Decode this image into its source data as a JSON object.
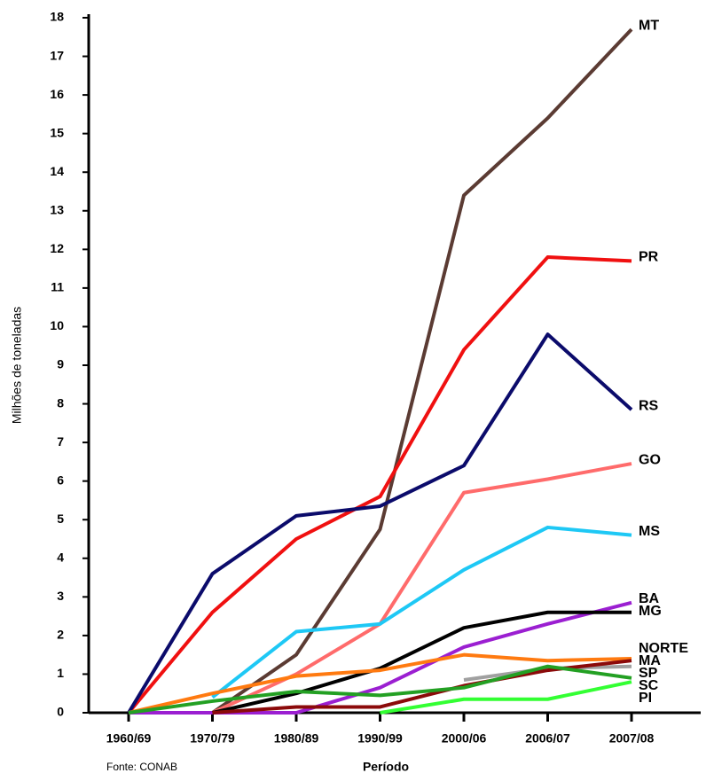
{
  "chart_data": {
    "type": "line",
    "y_label": "Milhões de toneladas",
    "x_label": "Período",
    "source": "Fonte: CONAB",
    "categories": [
      "1960/69",
      "1970/79",
      "1980/89",
      "1990/99",
      "2000/06",
      "2006/07",
      "2007/08"
    ],
    "ylim": [
      0,
      18
    ],
    "yticks": [
      0,
      1,
      2,
      3,
      4,
      5,
      6,
      7,
      8,
      9,
      10,
      11,
      12,
      13,
      14,
      15,
      16,
      17,
      18
    ],
    "series": [
      {
        "name": "MT",
        "color": "#5b3b33",
        "values": [
          null,
          0,
          1.5,
          4.75,
          13.4,
          15.4,
          17.7
        ]
      },
      {
        "name": "PR",
        "color": "#f01010",
        "values": [
          0,
          2.6,
          4.5,
          5.6,
          9.4,
          11.8,
          11.7
        ]
      },
      {
        "name": "RS",
        "color": "#0b0b6b",
        "values": [
          0,
          3.6,
          5.1,
          5.35,
          6.4,
          9.8,
          7.85
        ]
      },
      {
        "name": "GO",
        "color": "#ff6b6b",
        "values": [
          null,
          0,
          1.0,
          2.3,
          5.7,
          6.05,
          6.45
        ]
      },
      {
        "name": "MS",
        "color": "#1ec8f5",
        "values": [
          null,
          0.4,
          2.1,
          2.3,
          3.7,
          4.8,
          4.6
        ]
      },
      {
        "name": "BA",
        "color": "#9b1fd1",
        "values": [
          0,
          0,
          0,
          0.65,
          1.7,
          2.3,
          2.85
        ]
      },
      {
        "name": "MG",
        "color": "#000000",
        "values": [
          null,
          0,
          0.5,
          1.15,
          2.2,
          2.6,
          2.6
        ]
      },
      {
        "name": "SP",
        "color": "#a0a0a0",
        "values": [
          null,
          null,
          null,
          null,
          0.85,
          1.15,
          1.2
        ]
      },
      {
        "name": "NORTE",
        "color": "#ff7a10",
        "values": [
          0,
          0.5,
          0.95,
          1.1,
          1.5,
          1.35,
          1.4
        ]
      },
      {
        "name": "MA",
        "color": "#8b0a0a",
        "values": [
          null,
          0,
          0.15,
          0.15,
          0.7,
          1.1,
          1.35
        ]
      },
      {
        "name": "SC",
        "color": "#23a023",
        "values": [
          0,
          0.3,
          0.55,
          0.45,
          0.65,
          1.2,
          0.9
        ]
      },
      {
        "name": "PI",
        "color": "#33ff33",
        "values": [
          null,
          null,
          null,
          0,
          0.35,
          0.35,
          0.8
        ]
      }
    ]
  }
}
